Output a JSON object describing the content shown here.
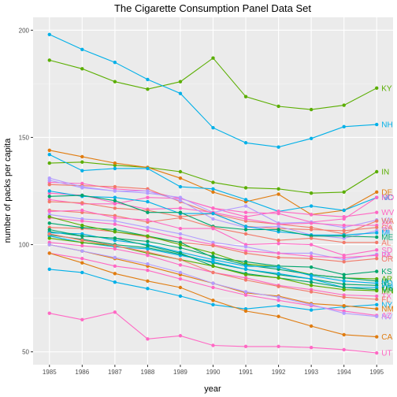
{
  "chart_data": {
    "type": "line",
    "title": "The Cigarette Consumption Panel Data Set",
    "xlabel": "year",
    "ylabel": "number of packs per capita",
    "x": [
      1985,
      1986,
      1987,
      1988,
      1989,
      1990,
      1991,
      1992,
      1993,
      1994,
      1995
    ],
    "x_ticks": [
      "1985",
      "1986",
      "1987",
      "1988",
      "1989",
      "1990",
      "1991",
      "1992",
      "1993",
      "1994",
      "1995"
    ],
    "y_ticks": [
      "50",
      "100",
      "150",
      "200"
    ],
    "xlim": [
      1984.5,
      1995.5
    ],
    "ylim": [
      44,
      206
    ],
    "grid": true,
    "legend": "none",
    "series": [
      {
        "name": "KY",
        "color": "#5aae00",
        "values": [
          186,
          182,
          176,
          172.5,
          176,
          187,
          169,
          164.5,
          163,
          165,
          173
        ]
      },
      {
        "name": "NH",
        "color": "#00b0e8",
        "values": [
          198,
          191,
          185,
          177,
          170.5,
          154.5,
          147.5,
          145.5,
          149.5,
          155,
          156
        ]
      },
      {
        "name": "IN",
        "color": "#5aae00",
        "values": [
          138,
          138.5,
          137,
          136,
          134,
          129,
          126.5,
          126,
          124,
          124.5,
          134
        ]
      },
      {
        "name": "DE",
        "color": "#e07c10",
        "values": [
          144,
          141,
          138,
          136,
          131,
          124.5,
          120,
          123.5,
          114,
          116,
          124.5
        ]
      },
      {
        "name": "NC",
        "color": "#00b0e8",
        "values": [
          142,
          134.5,
          135.5,
          135.5,
          127,
          126,
          121,
          115.5,
          118,
          116,
          122
        ]
      },
      {
        "name": "MO",
        "color": "#ff68c4",
        "values": [
          129,
          128.5,
          126,
          125,
          121.5,
          117,
          115,
          114.5,
          110.5,
          112,
          122
        ]
      },
      {
        "name": "WV",
        "color": "#ff68c4",
        "values": [
          121,
          119,
          119,
          122,
          121.5,
          117,
          113,
          115.5,
          114,
          113,
          115
        ]
      },
      {
        "name": "VA",
        "color": "#b39dff",
        "values": [
          130,
          126.5,
          125,
          124,
          122,
          115,
          118,
          110,
          110.5,
          108,
          111.5
        ]
      },
      {
        "name": "WA",
        "color": "#f27a6a",
        "values": [
          128,
          127.5,
          127,
          126,
          120,
          114.5,
          111,
          109.5,
          108,
          105,
          111
        ]
      },
      {
        "name": "SC",
        "color": "#ff68c4",
        "values": [
          124,
          123,
          119.5,
          116.5,
          117,
          115,
          112,
          109.5,
          110,
          109,
          109
        ]
      },
      {
        "name": "GA",
        "color": "#f27a6a",
        "values": [
          120,
          119.5,
          117,
          116,
          113,
          114.5,
          108.5,
          107.5,
          107,
          106.5,
          108
        ]
      },
      {
        "name": "RI",
        "color": "#b39dff",
        "values": [
          131,
          127,
          125,
          125,
          120.5,
          112,
          108,
          108.5,
          104.5,
          103,
          106.5
        ]
      },
      {
        "name": "MI",
        "color": "#00b0e8",
        "values": [
          125,
          122.5,
          122,
          120,
          114.5,
          114.5,
          108.5,
          106,
          104.5,
          104.5,
          105.5
        ]
      },
      {
        "name": "ME",
        "color": "#00a66c",
        "values": [
          122.5,
          123,
          120.5,
          115,
          115,
          108.5,
          107,
          107,
          104,
          104,
          103.5
        ]
      },
      {
        "name": "AL",
        "color": "#f27a6a",
        "values": [
          116,
          115,
          113.5,
          110.5,
          112.5,
          108,
          105,
          102,
          103,
          101,
          101
        ]
      },
      {
        "name": "SD",
        "color": "#ff68c4",
        "values": [
          115.5,
          116,
          112.5,
          111.5,
          107.5,
          107.5,
          100,
          100.5,
          100,
          95,
          97.5
        ]
      },
      {
        "name": "ID",
        "color": "#b39dff",
        "values": [
          114,
          112,
          111,
          108,
          105,
          101,
          99,
          96,
          96,
          93,
          95.5
        ]
      },
      {
        "name": "PA",
        "color": "#ff68c4",
        "values": [
          112.5,
          111,
          109.5,
          106.5,
          103,
          100,
          97,
          96,
          94.5,
          94,
          95
        ]
      },
      {
        "name": "OR",
        "color": "#f27a6a",
        "values": [
          108,
          107.5,
          106,
          103.5,
          101,
          99.5,
          96,
          94,
          93.5,
          92,
          93.5
        ]
      },
      {
        "name": "KS",
        "color": "#00a66c",
        "values": [
          110,
          108,
          107,
          104,
          101,
          94,
          92,
          90,
          89.5,
          86,
          87.5
        ]
      },
      {
        "name": "AR",
        "color": "#5aae00",
        "values": [
          113,
          109,
          106,
          104,
          100,
          96,
          91,
          89.5,
          86,
          84.5,
          84
        ]
      },
      {
        "name": "IA",
        "color": "#00a66c",
        "values": [
          106,
          104,
          103,
          101.5,
          98.5,
          94.5,
          90.5,
          88.5,
          86,
          84.5,
          83
        ]
      },
      {
        "name": "ND",
        "color": "#00b0e8",
        "values": [
          105.5,
          105,
          102,
          100,
          96.5,
          93,
          90,
          89.5,
          85.5,
          83,
          82
        ]
      },
      {
        "name": "WI",
        "color": "#00a66c",
        "values": [
          104.5,
          102.5,
          100,
          98.5,
          95.5,
          91.5,
          88.5,
          86,
          84,
          81.5,
          81
        ]
      },
      {
        "name": "OH",
        "color": "#00b0e8",
        "values": [
          104,
          101,
          99,
          98,
          95,
          92,
          88.5,
          86.5,
          84,
          80,
          80
        ]
      },
      {
        "name": "MA",
        "color": "#00a66c",
        "values": [
          107,
          104,
          103,
          99.5,
          96,
          90,
          86.5,
          84.5,
          82.5,
          80,
          79
        ]
      },
      {
        "name": "MN",
        "color": "#5aae00",
        "values": [
          103,
          101,
          99.5,
          96,
          93,
          90,
          86,
          84.5,
          81,
          79,
          78.5
        ]
      },
      {
        "name": "TX",
        "color": "#ff68c4",
        "values": [
          101,
          99.5,
          98,
          95,
          90.5,
          87,
          84.5,
          81,
          79,
          76.5,
          76
        ]
      },
      {
        "name": "FL",
        "color": "#f27a6a",
        "values": [
          105,
          102,
          99.5,
          96.5,
          93,
          87,
          83.5,
          80.5,
          78,
          75.5,
          74.5
        ]
      },
      {
        "name": "NY",
        "color": "#00b0e8",
        "values": [
          88.5,
          87,
          82.5,
          79.5,
          76,
          72,
          70,
          71.5,
          69.5,
          71,
          72
        ]
      },
      {
        "name": "NM",
        "color": "#e07c10",
        "values": [
          100,
          97,
          93.5,
          90,
          86,
          82,
          77.5,
          76,
          72.5,
          71.5,
          70
        ]
      },
      {
        "name": "AZ",
        "color": "#ff68c4",
        "values": [
          96,
          93.5,
          90,
          88,
          84,
          80,
          76.5,
          74,
          71.5,
          69,
          67
        ]
      },
      {
        "name": "NV",
        "color": "#b39dff",
        "values": [
          100,
          97,
          94,
          91,
          87,
          82,
          78,
          75.5,
          72,
          68,
          66.5
        ]
      },
      {
        "name": "CA",
        "color": "#e07c10",
        "values": [
          96,
          91.5,
          86.5,
          83,
          80,
          74,
          69,
          66.5,
          62,
          58,
          57
        ]
      },
      {
        "name": "UT",
        "color": "#ff68c4",
        "values": [
          68,
          65,
          68.5,
          56,
          57.5,
          53,
          52.5,
          52.5,
          52,
          51,
          49.5
        ]
      }
    ]
  }
}
